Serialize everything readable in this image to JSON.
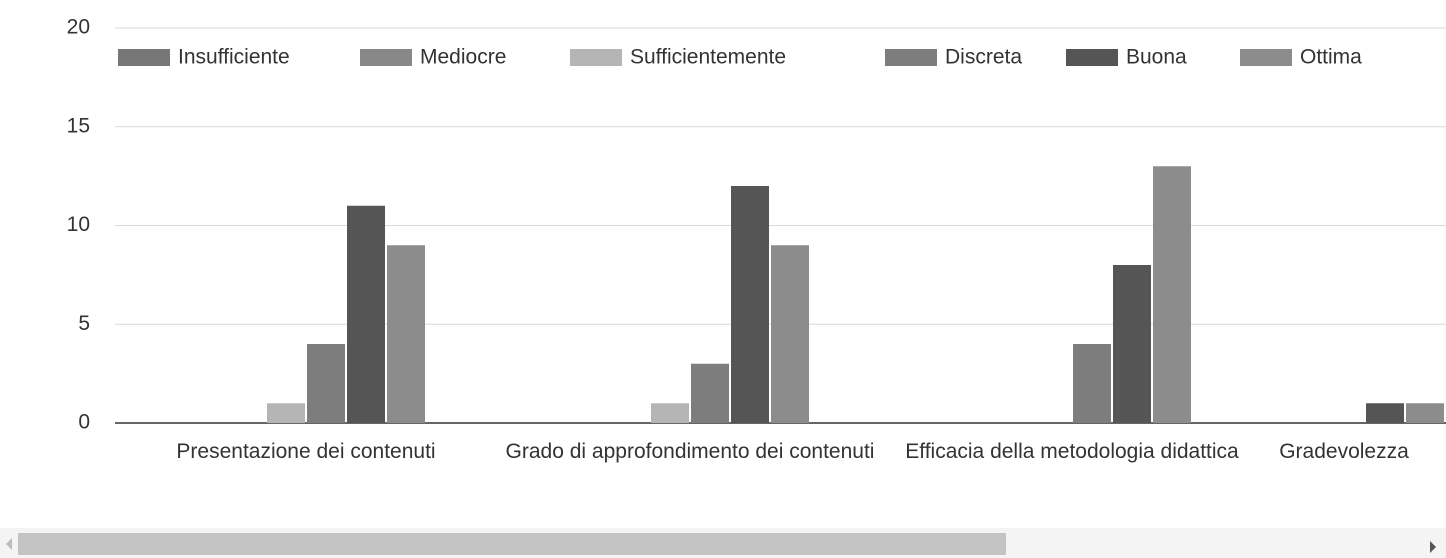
{
  "chart_data": {
    "type": "bar",
    "categories": [
      "Presentazione dei contenuti",
      "Grado di approfondimento dei contenuti",
      "Efficacia della metodologia didattica",
      "Gradevolezza"
    ],
    "series": [
      {
        "name": "Insufficiente",
        "color": "#777777",
        "values": [
          0,
          0,
          0,
          0
        ]
      },
      {
        "name": "Mediocre",
        "color": "#888888",
        "values": [
          0,
          0,
          0,
          0
        ]
      },
      {
        "name": "Sufficientemente",
        "color": "#b5b5b5",
        "values": [
          1,
          1,
          0,
          0
        ]
      },
      {
        "name": "Discreta",
        "color": "#7d7d7d",
        "values": [
          4,
          3,
          4,
          0
        ]
      },
      {
        "name": "Buona",
        "color": "#555555",
        "values": [
          11,
          12,
          8,
          1
        ]
      },
      {
        "name": "Ottima",
        "color": "#8c8c8c",
        "values": [
          9,
          9,
          13,
          1
        ]
      }
    ],
    "ylim": [
      0,
      20
    ],
    "yticks": [
      0,
      5,
      10,
      15,
      20
    ],
    "grid": true,
    "legend": "top"
  }
}
